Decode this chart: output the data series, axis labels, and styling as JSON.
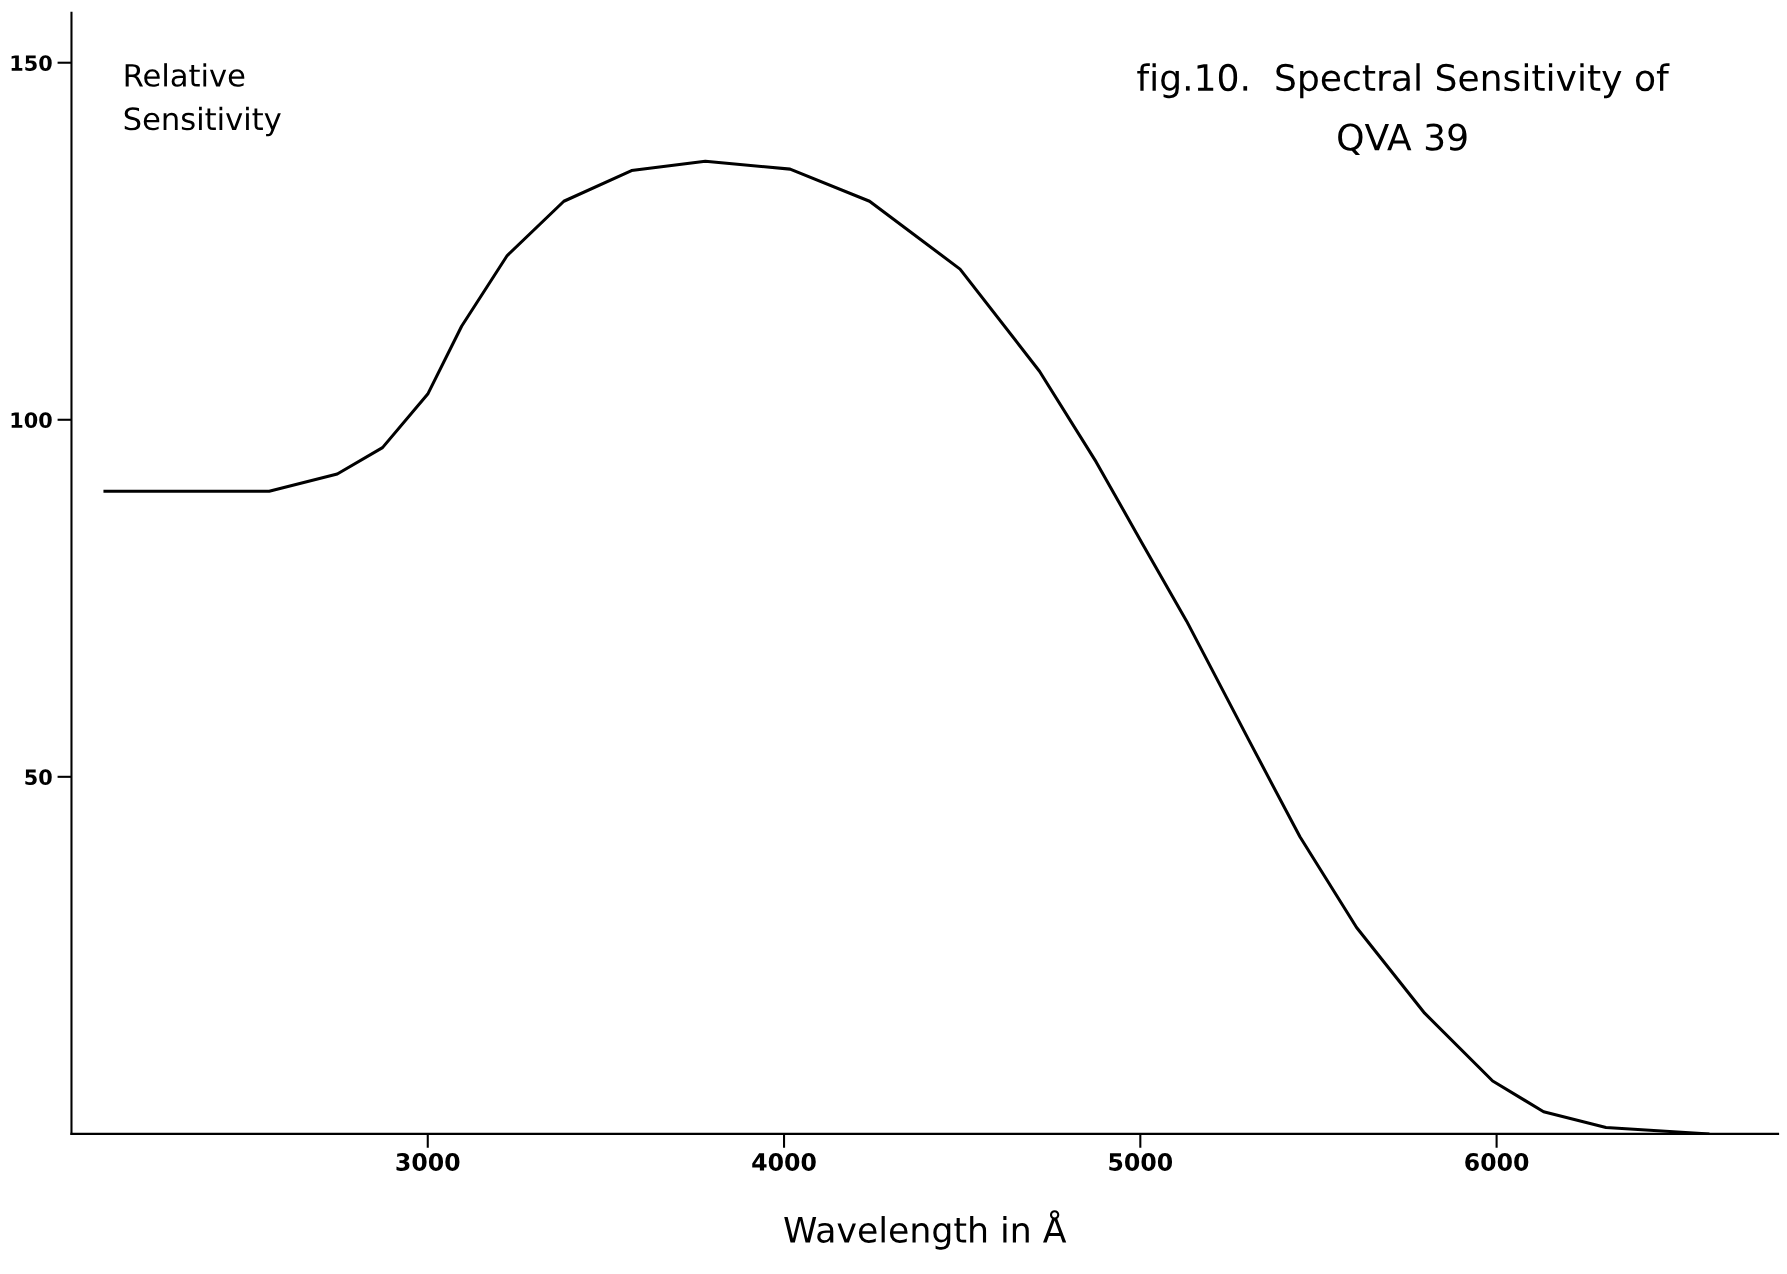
{
  "chart_data": {
    "type": "line",
    "title": "fig.10.  Spectral Sensitivity of\nQVA 39",
    "ylabel": "Relative\nSensitivity",
    "xlabel": "Wavelength in Å",
    "series": [
      {
        "color": "#000000",
        "x": [
          2094,
          2555,
          2746,
          2873,
          3000,
          3095,
          3223,
          3382,
          3572,
          3779,
          4017,
          4240,
          4494,
          4717,
          4876,
          5003,
          5130,
          5305,
          5448,
          5607,
          5798,
          5989,
          6132,
          6307,
          6593
        ],
        "values": [
          90,
          90,
          92.4,
          96.1,
          103.6,
          113.1,
          123.0,
          130.6,
          134.9,
          136.2,
          135.1,
          130.6,
          121.1,
          106.8,
          94.1,
          82.9,
          71.8,
          55.1,
          41.6,
          28.9,
          16.9,
          7.4,
          3.1,
          0.9,
          0
        ]
      }
    ],
    "xlim": [
      2000,
      6790
    ],
    "ylim": [
      0,
      157
    ],
    "xticks": [
      3000,
      4000,
      5000,
      6000
    ],
    "yticks": [
      50,
      100,
      150
    ],
    "grid": false,
    "legend": false,
    "marker": "none",
    "line_style": "solid"
  }
}
